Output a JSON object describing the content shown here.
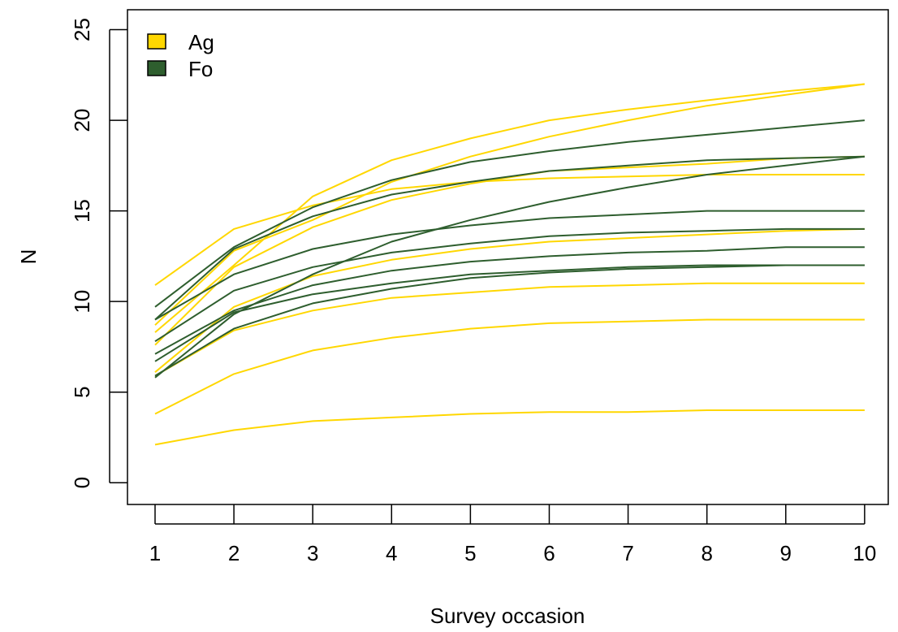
{
  "chart_data": {
    "type": "line",
    "title": "",
    "xlabel": "Survey occasion",
    "ylabel": "N",
    "x": [
      1,
      2,
      3,
      4,
      5,
      6,
      7,
      8,
      9,
      10
    ],
    "xlim": [
      0.65,
      10.3
    ],
    "ylim": [
      -1.2,
      26.1
    ],
    "xticks": [
      1,
      2,
      3,
      4,
      5,
      6,
      7,
      8,
      9,
      10
    ],
    "yticks": [
      0,
      5,
      10,
      15,
      20,
      25
    ],
    "grid": false,
    "legend_position": "top-left",
    "legend": [
      {
        "label": "Ag",
        "color": "#FFD700"
      },
      {
        "label": "Fo",
        "color": "#2E5E2E"
      }
    ],
    "series": [
      {
        "group": "Ag",
        "values": [
          10.9,
          14.0,
          15.3,
          16.2,
          16.6,
          16.8,
          16.9,
          17.0,
          17.0,
          17.0
        ]
      },
      {
        "group": "Ag",
        "values": [
          8.3,
          12.0,
          15.8,
          17.8,
          19.0,
          20.0,
          20.6,
          21.1,
          21.6,
          22.0
        ]
      },
      {
        "group": "Ag",
        "values": [
          7.6,
          11.9,
          14.1,
          15.6,
          16.5,
          17.2,
          17.4,
          17.6,
          17.9,
          18.0
        ]
      },
      {
        "group": "Ag",
        "values": [
          8.7,
          12.8,
          14.5,
          16.6,
          18.0,
          19.1,
          20.0,
          20.8,
          21.4,
          22.0
        ]
      },
      {
        "group": "Ag",
        "values": [
          6.1,
          9.7,
          11.4,
          12.3,
          12.9,
          13.3,
          13.5,
          13.7,
          13.9,
          14.0
        ]
      },
      {
        "group": "Ag",
        "values": [
          5.9,
          8.4,
          9.5,
          10.2,
          10.5,
          10.8,
          10.9,
          11.0,
          11.0,
          11.0
        ]
      },
      {
        "group": "Ag",
        "values": [
          3.8,
          6.0,
          7.3,
          8.0,
          8.5,
          8.8,
          8.9,
          9.0,
          9.0,
          9.0
        ]
      },
      {
        "group": "Ag",
        "values": [
          2.1,
          2.9,
          3.4,
          3.6,
          3.8,
          3.9,
          3.9,
          4.0,
          4.0,
          4.0
        ]
      },
      {
        "group": "Fo",
        "values": [
          9.7,
          13.0,
          15.2,
          16.7,
          17.7,
          18.3,
          18.8,
          19.2,
          19.6,
          20.0
        ]
      },
      {
        "group": "Fo",
        "values": [
          9.0,
          12.9,
          14.7,
          15.9,
          16.6,
          17.2,
          17.5,
          17.8,
          17.9,
          18.0
        ]
      },
      {
        "group": "Fo",
        "values": [
          9.0,
          11.5,
          12.9,
          13.7,
          14.2,
          14.6,
          14.8,
          15.0,
          15.0,
          15.0
        ]
      },
      {
        "group": "Fo",
        "values": [
          5.8,
          9.3,
          11.5,
          13.3,
          14.5,
          15.5,
          16.3,
          17.0,
          17.5,
          18.0
        ]
      },
      {
        "group": "Fo",
        "values": [
          7.8,
          10.6,
          11.9,
          12.7,
          13.2,
          13.6,
          13.8,
          13.9,
          14.0,
          14.0
        ]
      },
      {
        "group": "Fo",
        "values": [
          7.1,
          9.5,
          10.9,
          11.7,
          12.2,
          12.5,
          12.7,
          12.8,
          13.0,
          13.0
        ]
      },
      {
        "group": "Fo",
        "values": [
          6.7,
          9.4,
          10.4,
          11.0,
          11.5,
          11.7,
          11.9,
          12.0,
          12.0,
          12.0
        ]
      },
      {
        "group": "Fo",
        "values": [
          5.9,
          8.5,
          9.9,
          10.7,
          11.3,
          11.6,
          11.8,
          11.9,
          12.0,
          12.0
        ]
      }
    ]
  }
}
